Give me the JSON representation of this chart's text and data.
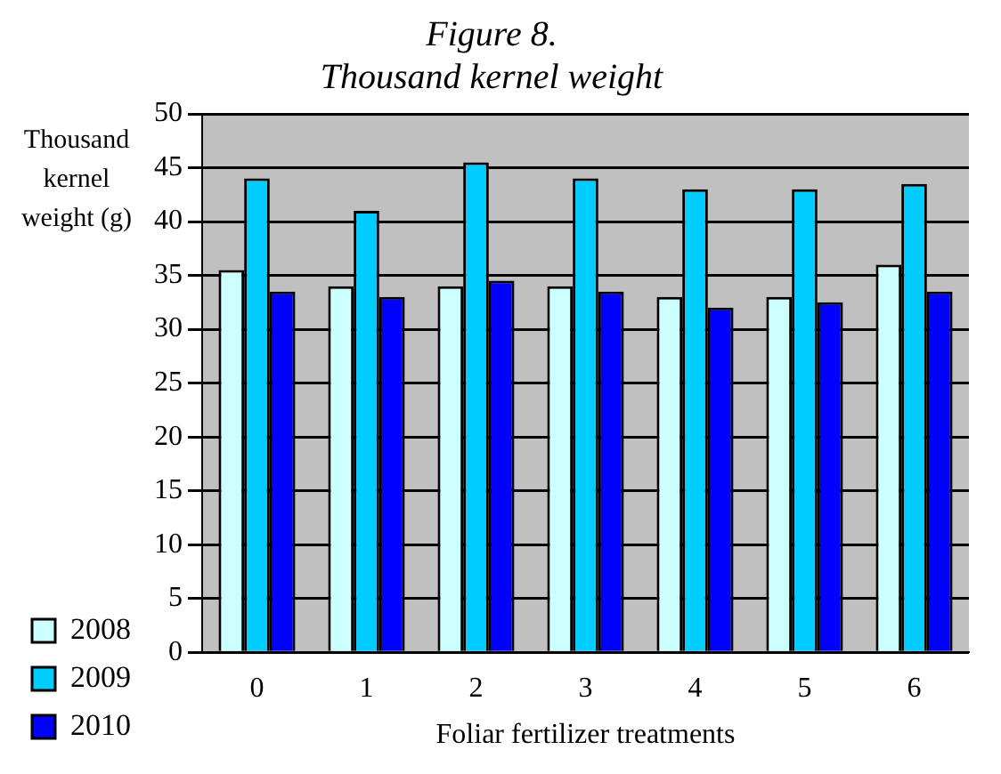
{
  "chart_data": {
    "type": "bar",
    "title": "Figure 8.",
    "subtitle": "Thousand kernel weight",
    "ylabel": "Thousand kernel weight (g)",
    "xlabel": "Foliar fertilizer treatments",
    "categories": [
      "0",
      "1",
      "2",
      "3",
      "4",
      "5",
      "6"
    ],
    "series": [
      {
        "name": "2008",
        "color": "#ccffff",
        "values": [
          35.5,
          34,
          34,
          34,
          33,
          33,
          36
        ]
      },
      {
        "name": "2009",
        "color": "#00ccff",
        "values": [
          44,
          41,
          45.5,
          44,
          43,
          43,
          43.5
        ]
      },
      {
        "name": "2010",
        "color": "#0000ff",
        "values": [
          33.5,
          33,
          34.5,
          33.5,
          32,
          32.5,
          33.5
        ]
      }
    ],
    "ylim": [
      0,
      50
    ],
    "yticks": [
      0,
      5,
      10,
      15,
      20,
      25,
      30,
      35,
      40,
      45,
      50
    ],
    "grid": "y",
    "legend": "bottom left"
  }
}
